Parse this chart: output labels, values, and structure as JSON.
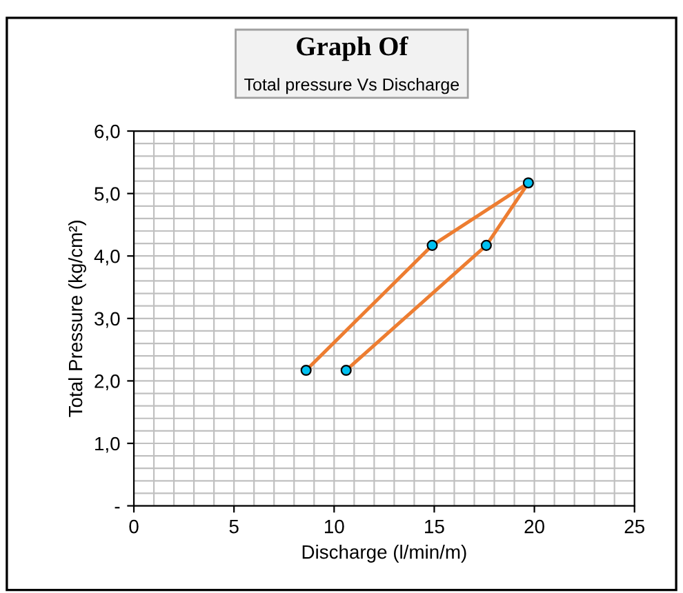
{
  "chart_data": {
    "type": "line",
    "title": "Graph Of",
    "subtitle": "Total pressure Vs Discharge",
    "xlabel": "Discharge (l/min/m)",
    "ylabel": "Total Pressure (kg/cm²)",
    "x": [
      8.6,
      14.9,
      19.7,
      17.6,
      10.6
    ],
    "series": [
      {
        "color": "#ed7d31",
        "values": [
          2.17,
          4.17,
          5.17,
          4.17,
          2.17
        ]
      }
    ],
    "marker": "circle",
    "line_style": "solid",
    "xlim": [
      0,
      25
    ],
    "xticks": [
      0,
      5,
      10,
      15,
      20,
      25
    ],
    "ylim": [
      0,
      6
    ],
    "yticks": [
      {
        "value": 0,
        "label": "-"
      },
      {
        "value": 1,
        "label": "1,0"
      },
      {
        "value": 2,
        "label": "2,0"
      },
      {
        "value": 3,
        "label": "3,0"
      },
      {
        "value": 4,
        "label": "4,0"
      },
      {
        "value": 5,
        "label": "5,0"
      },
      {
        "value": 6,
        "label": "6,0"
      }
    ],
    "grid": true,
    "legend": false
  }
}
